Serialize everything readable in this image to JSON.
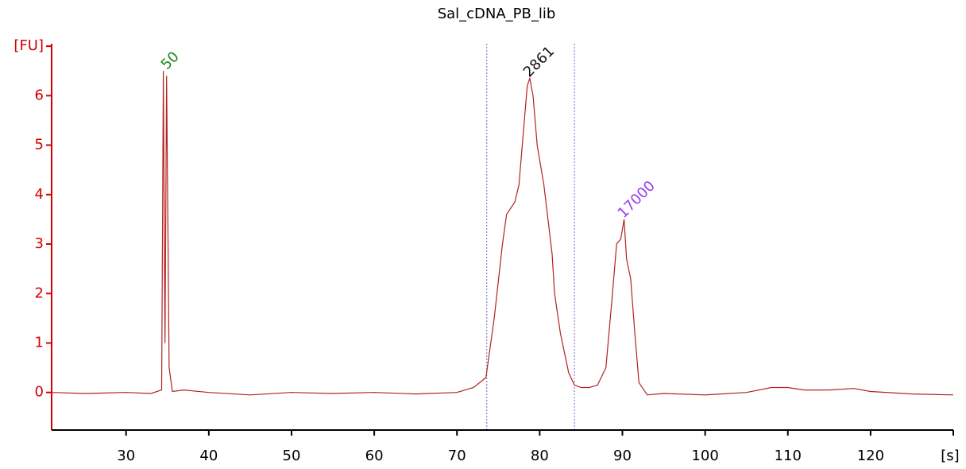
{
  "chart_data": {
    "type": "line",
    "title": "Sal_cDNA_PB_lib",
    "xlim": [
      21,
      130
    ],
    "ylim": [
      -0.76,
      7.05
    ],
    "xticks": [
      30,
      40,
      50,
      60,
      70,
      80,
      90,
      100,
      110,
      120,
      {
        "value": 130,
        "label": "[s]"
      }
    ],
    "yticks": [
      0,
      1,
      2,
      3,
      4,
      5,
      6,
      {
        "value": 7,
        "label": "[FU]"
      }
    ],
    "axis_color": "#d40000",
    "series": [
      {
        "color": "#b22222",
        "x": [
          21,
          25,
          30,
          33,
          34.3,
          34.5,
          34.7,
          34.9,
          35.2,
          35.6,
          37,
          40,
          45,
          50,
          55,
          60,
          65,
          70,
          72,
          73.5,
          74.5,
          75.5,
          76,
          77,
          77.5,
          78,
          78.5,
          78.8,
          79.2,
          79.7,
          80.5,
          81.5,
          81.8,
          82.5,
          83.5,
          84.2,
          85,
          86,
          87,
          88,
          88.7,
          89.3,
          89.8,
          90.2,
          90.5,
          91,
          91.5,
          92,
          93,
          95,
          100,
          105,
          108,
          110,
          112,
          115,
          118,
          120,
          125,
          130
        ],
        "values": [
          0,
          -0.02,
          0,
          -0.02,
          0.05,
          6.5,
          1.0,
          6.4,
          0.5,
          0.02,
          0.05,
          0,
          -0.05,
          0,
          -0.02,
          0,
          -0.03,
          0,
          0.1,
          0.3,
          1.5,
          3.0,
          3.6,
          3.85,
          4.2,
          5.2,
          6.2,
          6.35,
          6.0,
          5.0,
          4.2,
          2.8,
          2.0,
          1.2,
          0.4,
          0.15,
          0.1,
          0.1,
          0.15,
          0.5,
          1.8,
          3.0,
          3.1,
          3.5,
          2.7,
          2.3,
          1.2,
          0.2,
          -0.05,
          -0.02,
          -0.05,
          0,
          0.1,
          0.1,
          0.05,
          0.05,
          0.08,
          0.02,
          -0.03,
          -0.05
        ]
      }
    ],
    "region": [
      73.6,
      84.2
    ],
    "region_color": "#6a6ad0",
    "annotations": [
      {
        "x": 35,
        "y": 6.5,
        "text": "50",
        "color": "#1a8a1a"
      },
      {
        "x": 78.8,
        "y": 6.35,
        "text": "2861",
        "color": "#111111"
      },
      {
        "x": 90.2,
        "y": 3.5,
        "text": "17000",
        "color": "#9a3cf0"
      }
    ]
  }
}
